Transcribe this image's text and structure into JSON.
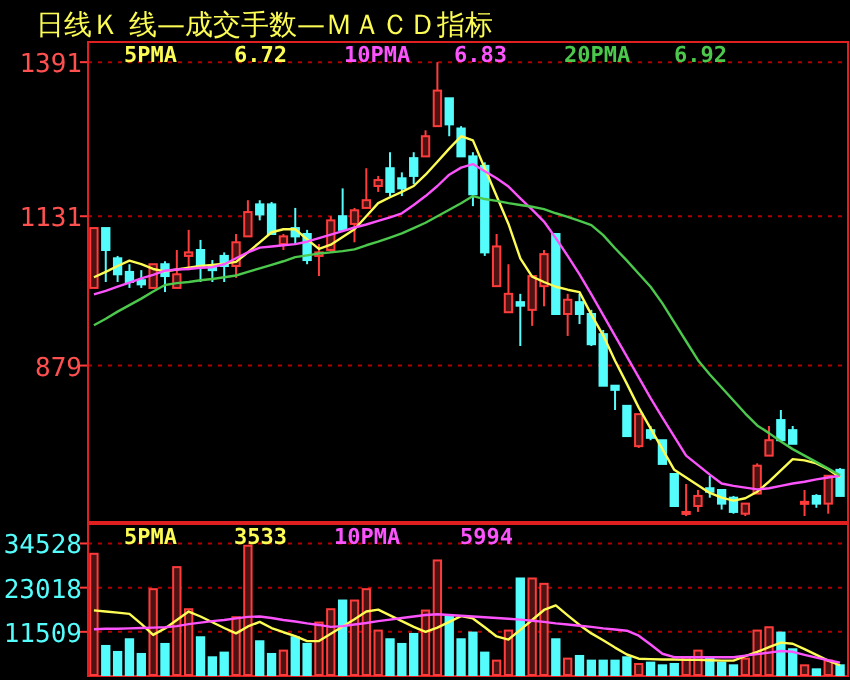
{
  "chart_data": [
    {
      "type": "candlestick",
      "title": "日线Ｋ 线—成交手数—ＭＡＣＤ指标",
      "ylim": [
        615,
        1425
      ],
      "yticks": [
        1391,
        1131,
        879
      ],
      "tick_labels": "y",
      "grid": "y",
      "categories": [
        null,
        null,
        null,
        null,
        null,
        null,
        null,
        null,
        null,
        null,
        null,
        null,
        null,
        null,
        null,
        null,
        null,
        null,
        null,
        null,
        null,
        null,
        null,
        null,
        null,
        null,
        null,
        null,
        null,
        null,
        null,
        null,
        null,
        null,
        null,
        null,
        null,
        null,
        null,
        null,
        null,
        null,
        null,
        null,
        null,
        null,
        null,
        null,
        null,
        null,
        null,
        null,
        null,
        null,
        null,
        null,
        null,
        null,
        null,
        null,
        null,
        null,
        null,
        null
      ],
      "ohlc": [
        [
          1010,
          1111,
          1010,
          1111
        ],
        [
          1111,
          1111,
          1020,
          1074
        ],
        [
          1060,
          1064,
          1020,
          1033
        ],
        [
          1037,
          1050,
          1010,
          1020
        ],
        [
          1023,
          1040,
          1010,
          1016
        ],
        [
          1010,
          1050,
          1010,
          1050
        ],
        [
          1050,
          1055,
          1003,
          1030
        ],
        [
          1010,
          1074,
          1010,
          1033
        ],
        [
          1064,
          1108,
          1040,
          1070
        ],
        [
          1074,
          1091,
          1020,
          1047
        ],
        [
          1047,
          1057,
          1020,
          1040
        ],
        [
          1064,
          1070,
          1020,
          1047
        ],
        [
          1047,
          1101,
          1027,
          1087
        ],
        [
          1097,
          1158,
          1097,
          1138
        ],
        [
          1151,
          1158,
          1124,
          1134
        ],
        [
          1151,
          1155,
          1101,
          1101
        ],
        [
          1084,
          1101,
          1074,
          1097
        ],
        [
          1111,
          1145,
          1084,
          1097
        ],
        [
          1101,
          1108,
          1050,
          1057
        ],
        [
          1064,
          1084,
          1030,
          1070
        ],
        [
          1074,
          1131,
          1070,
          1124
        ],
        [
          1131,
          1178,
          1108,
          1108
        ],
        [
          1118,
          1145,
          1087,
          1141
        ],
        [
          1145,
          1212,
          1145,
          1158
        ],
        [
          1182,
          1199,
          1172,
          1192
        ],
        [
          1212,
          1239,
          1165,
          1172
        ],
        [
          1195,
          1205,
          1165,
          1178
        ],
        [
          1229,
          1239,
          1185,
          1199
        ],
        [
          1232,
          1276,
          1232,
          1266
        ],
        [
          1283,
          1391,
          1283,
          1343
        ],
        [
          1330,
          1330,
          1266,
          1286
        ],
        [
          1279,
          1283,
          1232,
          1232
        ],
        [
          1232,
          1239,
          1148,
          1168
        ],
        [
          1216,
          1222,
          1064,
          1070
        ],
        [
          1013,
          1101,
          1013,
          1080
        ],
        [
          969,
          1050,
          969,
          1000
        ],
        [
          986,
          1000,
          912,
          980
        ],
        [
          973,
          1030,
          946,
          1030
        ],
        [
          1013,
          1074,
          979,
          1067
        ],
        [
          1101,
          1101,
          966,
          966
        ],
        [
          966,
          1000,
          929,
          990
        ],
        [
          986,
          1000,
          949,
          966
        ],
        [
          966,
          973,
          912,
          915
        ],
        [
          932,
          939,
          845,
          845
        ],
        [
          845,
          845,
          804,
          838
        ],
        [
          811,
          811,
          760,
          760
        ],
        [
          743,
          797,
          740,
          797
        ],
        [
          770,
          777,
          753,
          757
        ],
        [
          753,
          753,
          713,
          713
        ],
        [
          696,
          696,
          642,
          642
        ],
        [
          629,
          679,
          625,
          632
        ],
        [
          642,
          669,
          632,
          659
        ],
        [
          672,
          693,
          656,
          666
        ],
        [
          669,
          669,
          636,
          646
        ],
        [
          656,
          659,
          629,
          632
        ],
        [
          629,
          646,
          625,
          646
        ],
        [
          663,
          714,
          663,
          710
        ],
        [
          727,
          777,
          727,
          753
        ],
        [
          787,
          804,
          753,
          753
        ],
        [
          770,
          777,
          747,
          747
        ],
        [
          646,
          669,
          625,
          649
        ],
        [
          659,
          662,
          639,
          646
        ],
        [
          646,
          693,
          629,
          693
        ],
        [
          703,
          706,
          659,
          659
        ]
      ],
      "colors": [
        "#ff3c3c",
        "#54fcfc",
        "#54fcfc",
        "#54fcfc",
        "#54fcfc",
        "#ff3c3c",
        "#54fcfc",
        "#ff3c3c",
        "#ff3c3c",
        "#54fcfc",
        "#54fcfc",
        "#54fcfc",
        "#ff3c3c",
        "#ff3c3c",
        "#54fcfc",
        "#54fcfc",
        "#ff3c3c",
        "#54fcfc",
        "#54fcfc",
        "#ff3c3c",
        "#ff3c3c",
        "#54fcfc",
        "#ff3c3c",
        "#ff3c3c",
        "#ff3c3c",
        "#54fcfc",
        "#54fcfc",
        "#54fcfc",
        "#ff3c3c",
        "#ff3c3c",
        "#54fcfc",
        "#54fcfc",
        "#54fcfc",
        "#54fcfc",
        "#ff3c3c",
        "#ff3c3c",
        "#54fcfc",
        "#ff3c3c",
        "#ff3c3c",
        "#54fcfc",
        "#ff3c3c",
        "#54fcfc",
        "#54fcfc",
        "#54fcfc",
        "#54fcfc",
        "#54fcfc",
        "#ff3c3c",
        "#54fcfc",
        "#54fcfc",
        "#54fcfc",
        "#ff3c3c",
        "#ff3c3c",
        "#54fcfc",
        "#54fcfc",
        "#54fcfc",
        "#ff3c3c",
        "#ff3c3c",
        "#ff3c3c",
        "#54fcfc",
        "#54fcfc",
        "#ff3c3c",
        "#54fcfc",
        "#ff3c3c",
        "#54fcfc"
      ]
    },
    {
      "type": "line",
      "ylim": [
        615,
        1425
      ],
      "yticks": [
        1391,
        1131,
        879
      ],
      "tick_labels": false,
      "legend": "top left",
      "categories": [
        null,
        null,
        null,
        null,
        null,
        null,
        null,
        null,
        null,
        null,
        null,
        null,
        null,
        null,
        null,
        null,
        null,
        null,
        null,
        null,
        null,
        null,
        null,
        null,
        null,
        null,
        null,
        null,
        null,
        null,
        null,
        null,
        null,
        null,
        null,
        null,
        null,
        null,
        null,
        null,
        null,
        null,
        null,
        null,
        null,
        null,
        null,
        null,
        null,
        null,
        null,
        null,
        null,
        null,
        null,
        null,
        null,
        null,
        null,
        null,
        null,
        null,
        null,
        null
      ],
      "annotations": [
        "6.72",
        "6.83",
        "6.92"
      ],
      "series": [
        {
          "name": "5PMA",
          "color": "#fcfc54",
          "values": [
            1028,
            1037,
            1047,
            1056,
            1050,
            1042,
            1038,
            1041,
            1044,
            1047,
            1049,
            1051,
            1054,
            1070,
            1087,
            1104,
            1109,
            1109,
            1092,
            1076,
            1083,
            1096,
            1109,
            1131,
            1153,
            1163,
            1172,
            1182,
            1201,
            1223,
            1245,
            1266,
            1259,
            1212,
            1165,
            1118,
            1060,
            1029,
            1020,
            1012,
            1007,
            1003,
            965,
            930,
            887,
            848,
            808,
            773,
            738,
            703,
            690,
            677,
            664,
            656,
            651,
            655,
            666,
            683,
            702,
            721,
            719,
            714,
            704,
            690
          ]
        },
        {
          "name": "10PMA",
          "color": "#fc54fc",
          "values": [
            999,
            1005,
            1012,
            1019,
            1026,
            1032,
            1039,
            1041,
            1042,
            1044,
            1045,
            1050,
            1060,
            1070,
            1078,
            1080,
            1082,
            1084,
            1088,
            1094,
            1100,
            1106,
            1112,
            1117,
            1123,
            1129,
            1136,
            1150,
            1165,
            1182,
            1201,
            1213,
            1219,
            1207,
            1195,
            1181,
            1161,
            1142,
            1122,
            1094,
            1064,
            1033,
            999,
            964,
            929,
            894,
            859,
            824,
            791,
            759,
            727,
            711,
            695,
            680,
            676,
            673,
            670,
            672,
            676,
            680,
            683,
            687,
            690,
            693
          ]
        },
        {
          "name": "20PMA",
          "color": "#4cc84c",
          "values": [
            947,
            958,
            970,
            981,
            992,
            1004,
            1015,
            1018,
            1020,
            1023,
            1025,
            1028,
            1031,
            1037,
            1043,
            1049,
            1055,
            1062,
            1065,
            1068,
            1070,
            1072,
            1075,
            1082,
            1088,
            1095,
            1102,
            1111,
            1120,
            1131,
            1142,
            1153,
            1165,
            1160,
            1157,
            1153,
            1150,
            1147,
            1143,
            1136,
            1130,
            1123,
            1116,
            1099,
            1077,
            1056,
            1034,
            1012,
            984,
            952,
            920,
            888,
            864,
            842,
            820,
            798,
            778,
            765,
            751,
            738,
            727,
            716,
            705,
            694
          ]
        }
      ]
    },
    {
      "type": "bar",
      "ylim": [
        0,
        39600
      ],
      "yticks": [
        34528,
        23018,
        11509
      ],
      "tick_labels": "y",
      "grid": "y",
      "categories": [
        null,
        null,
        null,
        null,
        null,
        null,
        null,
        null,
        null,
        null,
        null,
        null,
        null,
        null,
        null,
        null,
        null,
        null,
        null,
        null,
        null,
        null,
        null,
        null,
        null,
        null,
        null,
        null,
        null,
        null,
        null,
        null,
        null,
        null,
        null,
        null,
        null,
        null,
        null,
        null,
        null,
        null,
        null,
        null,
        null,
        null,
        null,
        null,
        null,
        null,
        null,
        null,
        null,
        null,
        null,
        null,
        null,
        null,
        null,
        null,
        null,
        null,
        null,
        null
      ],
      "values": [
        31842,
        7830,
        6264,
        9570,
        5742,
        22620,
        8352,
        28362,
        17400,
        10092,
        4872,
        6090,
        15312,
        33930,
        9048,
        5742,
        6612,
        10092,
        8352,
        13920,
        17400,
        19662,
        19662,
        22620,
        11832,
        9570,
        8352,
        10962,
        17052,
        30102,
        15660,
        9570,
        11310,
        6090,
        4002,
        11832,
        25404,
        25404,
        24012,
        9570,
        4524,
        5220,
        4002,
        4002,
        4002,
        4872,
        3132,
        3480,
        2784,
        3132,
        4872,
        6612,
        4872,
        3480,
        2784,
        4524,
        11832,
        12702,
        11310,
        6960,
        2784,
        1740,
        4002,
        2784
      ],
      "colors": [
        "#ff3c3c",
        "#54fcfc",
        "#54fcfc",
        "#54fcfc",
        "#54fcfc",
        "#ff3c3c",
        "#54fcfc",
        "#ff3c3c",
        "#ff3c3c",
        "#54fcfc",
        "#54fcfc",
        "#54fcfc",
        "#ff3c3c",
        "#ff3c3c",
        "#54fcfc",
        "#54fcfc",
        "#ff3c3c",
        "#54fcfc",
        "#54fcfc",
        "#ff3c3c",
        "#ff3c3c",
        "#54fcfc",
        "#ff3c3c",
        "#ff3c3c",
        "#ff3c3c",
        "#54fcfc",
        "#54fcfc",
        "#54fcfc",
        "#ff3c3c",
        "#ff3c3c",
        "#54fcfc",
        "#54fcfc",
        "#54fcfc",
        "#54fcfc",
        "#ff3c3c",
        "#ff3c3c",
        "#54fcfc",
        "#ff3c3c",
        "#ff3c3c",
        "#54fcfc",
        "#ff3c3c",
        "#54fcfc",
        "#54fcfc",
        "#54fcfc",
        "#54fcfc",
        "#54fcfc",
        "#ff3c3c",
        "#54fcfc",
        "#54fcfc",
        "#54fcfc",
        "#ff3c3c",
        "#ff3c3c",
        "#54fcfc",
        "#54fcfc",
        "#54fcfc",
        "#ff3c3c",
        "#ff3c3c",
        "#ff3c3c",
        "#54fcfc",
        "#54fcfc",
        "#ff3c3c",
        "#54fcfc",
        "#ff3c3c",
        "#54fcfc"
      ]
    },
    {
      "type": "line",
      "ylim": [
        0,
        39600
      ],
      "yticks": [
        34528,
        23018,
        11509
      ],
      "tick_labels": false,
      "legend": "top left",
      "categories": [
        null,
        null,
        null,
        null,
        null,
        null,
        null,
        null,
        null,
        null,
        null,
        null,
        null,
        null,
        null,
        null,
        null,
        null,
        null,
        null,
        null,
        null,
        null,
        null,
        null,
        null,
        null,
        null,
        null,
        null,
        null,
        null,
        null,
        null,
        null,
        null,
        null,
        null,
        null,
        null,
        null,
        null,
        null,
        null,
        null,
        null,
        null,
        null,
        null,
        null,
        null,
        null,
        null,
        null,
        null,
        null,
        null,
        null,
        null,
        null,
        null,
        null,
        null,
        null
      ],
      "annotations": [
        "3533",
        "5994"
      ],
      "series": [
        {
          "name": "5PMA",
          "color": "#fcfc54",
          "values": [
            17100,
            16800,
            16500,
            16200,
            13600,
            10700,
            12400,
            14600,
            16800,
            15500,
            14000,
            12500,
            11100,
            12900,
            14100,
            12500,
            11400,
            10400,
            9100,
            9100,
            11000,
            12900,
            14800,
            16800,
            17300,
            15800,
            14300,
            12800,
            11500,
            12600,
            14100,
            15600,
            15000,
            12700,
            10300,
            9500,
            12000,
            14600,
            17200,
            18400,
            15800,
            13300,
            11100,
            9300,
            7400,
            5600,
            4500,
            4400,
            4300,
            4300,
            4200,
            4200,
            4100,
            4000,
            4000,
            5200,
            6300,
            7500,
            8700,
            8400,
            7000,
            5500,
            4000,
            2800
          ]
        },
        {
          "name": "10PMA",
          "color": "#fc54fc",
          "values": [
            12200,
            12300,
            12300,
            12400,
            12500,
            12600,
            12700,
            13000,
            13500,
            13900,
            14300,
            14600,
            15000,
            15400,
            15500,
            15100,
            14600,
            14200,
            13700,
            13300,
            12800,
            13000,
            13400,
            13800,
            14300,
            14700,
            15100,
            15500,
            15900,
            16100,
            15900,
            15700,
            15500,
            15300,
            15100,
            14900,
            14700,
            14400,
            14100,
            13700,
            13400,
            13100,
            12800,
            12400,
            12100,
            11800,
            10500,
            8200,
            5800,
            4900,
            4900,
            4900,
            4900,
            4900,
            4900,
            5300,
            5700,
            6100,
            6500,
            6300,
            5500,
            4800,
            4100,
            3500
          ]
        }
      ]
    }
  ]
}
